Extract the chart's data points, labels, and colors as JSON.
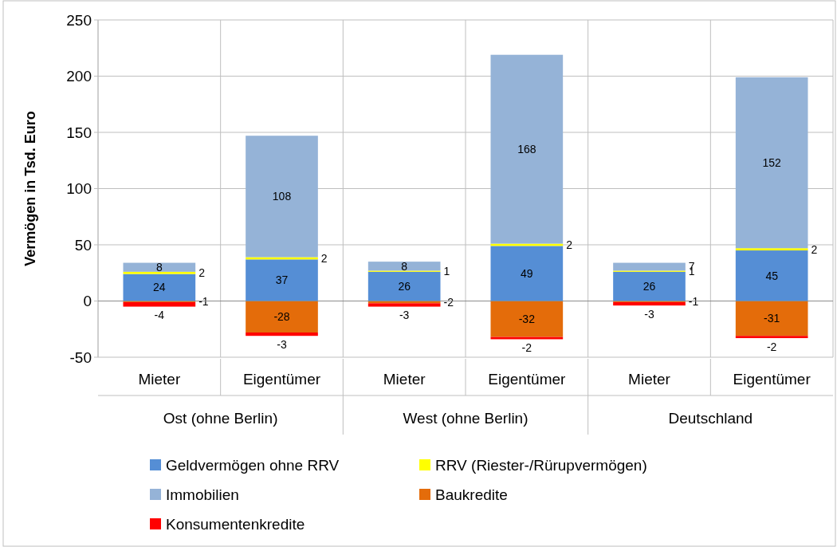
{
  "chart_data": {
    "type": "bar",
    "stacked": true,
    "ylabel": "Vermögen in Tsd. Euro",
    "categories": [
      "Mieter",
      "Eigentümer",
      "Mieter",
      "Eigentümer",
      "Mieter",
      "Eigentümer"
    ],
    "annotations": [
      "Ost (ohne Berlin)",
      "West (ohne Berlin)",
      "Deutschland"
    ],
    "series": [
      {
        "name": "Geldvermögen ohne RRV",
        "color": "#558ed5",
        "values": [
          24,
          37,
          26,
          49,
          26,
          45
        ]
      },
      {
        "name": "RRV (Riester-/Rürupvermögen)",
        "color": "#ffff00",
        "values": [
          2,
          2,
          1,
          2,
          1,
          2
        ]
      },
      {
        "name": "Immobilien",
        "color": "#95b3d7",
        "values": [
          8,
          108,
          8,
          168,
          7,
          152
        ]
      },
      {
        "name": "Baukredite",
        "color": "#e46c0a",
        "values": [
          -1,
          -28,
          -2,
          -32,
          -1,
          -31
        ]
      },
      {
        "name": "Konsumentenkredite",
        "color": "#ff0000",
        "values": [
          -4,
          -3,
          -3,
          -2,
          -3,
          -2
        ]
      }
    ],
    "ylim": [
      -50,
      250
    ],
    "yticks": [
      -50,
      0,
      50,
      100,
      150,
      200,
      250
    ],
    "grid": "y",
    "legend": "bottom",
    "data_labels": true
  }
}
